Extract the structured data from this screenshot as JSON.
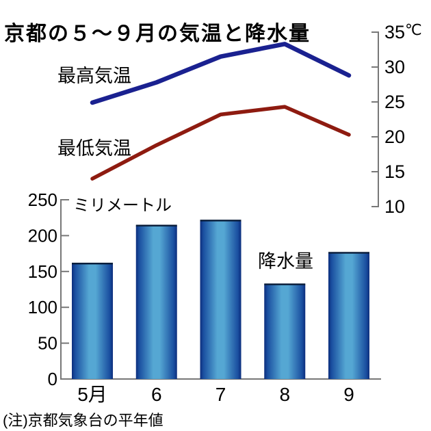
{
  "title": "京都の５～９月の気温と降水量",
  "note": "(注)京都気象台の平年値",
  "labels": {
    "max_temp": "最高気温",
    "min_temp": "最低気温",
    "precip": "降水量",
    "mm_unit": "ミリメートル",
    "temp_unit": "℃"
  },
  "colors": {
    "max_temp_line": "#1a2190",
    "min_temp_line": "#8e1b10",
    "bar_edge": "#0c2d7c",
    "bar_mid": "#1a4fa0",
    "bar_center": "#55a7d3",
    "bar_top_line": "#0b1f3c",
    "axis": "#777777",
    "text": "#000000"
  },
  "chart_data": [
    {
      "type": "line",
      "categories": [
        "5月",
        "6",
        "7",
        "8",
        "9"
      ],
      "series": [
        {
          "name": "最高気温",
          "values": [
            24.9,
            27.8,
            31.5,
            33.3,
            28.8
          ]
        },
        {
          "name": "最低気温",
          "values": [
            14.0,
            18.8,
            23.2,
            24.3,
            20.3
          ]
        }
      ],
      "ylabel": "℃",
      "ylim": [
        10,
        35
      ],
      "yticks": [
        10,
        15,
        20,
        25,
        30,
        35
      ],
      "axis_side": "right",
      "grid": false,
      "legend_position": "inline-left"
    },
    {
      "type": "bar",
      "name": "降水量",
      "categories": [
        "5月",
        "6",
        "7",
        "8",
        "9"
      ],
      "values": [
        161,
        214,
        221,
        132,
        176
      ],
      "ylabel": "ミリメートル",
      "ylim": [
        0,
        250
      ],
      "yticks": [
        0,
        50,
        100,
        150,
        200,
        250
      ],
      "axis_side": "left",
      "grid": false
    }
  ]
}
